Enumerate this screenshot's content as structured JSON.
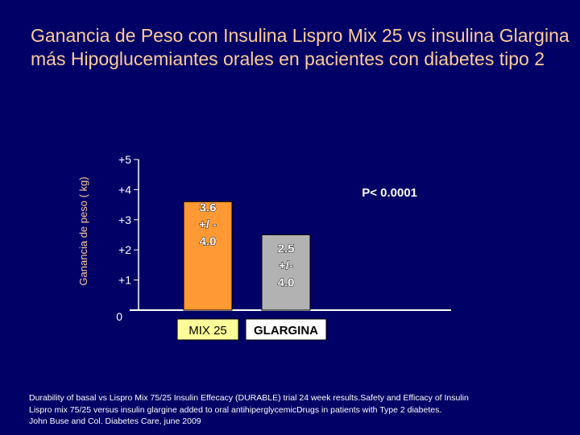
{
  "title": "Ganancia de Peso con Insulina Lispro Mix 25 vs insulina Glargina más Hipoglucemiantes orales  en pacientes con diabetes tipo 2",
  "colors": {
    "background": "#000066",
    "title": "#FFCC99",
    "mix25": "#FF9933",
    "glargina": "#B2B2B2",
    "mix25_label_box": "#FFFF99"
  },
  "chart_data": {
    "type": "bar",
    "ylabel": "Ganancia de peso ( kg)",
    "ylim": [
      0,
      5
    ],
    "yticks": [
      "0",
      "+1",
      "+2",
      "+3",
      "+4",
      "+5"
    ],
    "categories": [
      "MIX 25",
      "GLARGINA"
    ],
    "values": [
      3.6,
      2.5
    ],
    "bar_labels": [
      [
        "3.6",
        "+/ -",
        "4.0"
      ],
      [
        "2.5",
        "+/-",
        "4.0"
      ]
    ],
    "annotation": "P< 0.0001",
    "grid": false,
    "legend": "none"
  },
  "citation": [
    "Durability of basal vs Lispro Mix 75/25 Insulin Effecacy (DURABLE) trial 24 week results.Safety and Efficacy of Insulin",
    "Lispro mix 75/25 versus insulin glargine added to oral antihiperglycemicDrugs in patients with Type 2 diabetes.",
    "John Buse and Col. Diabetes Care, june 2009"
  ]
}
